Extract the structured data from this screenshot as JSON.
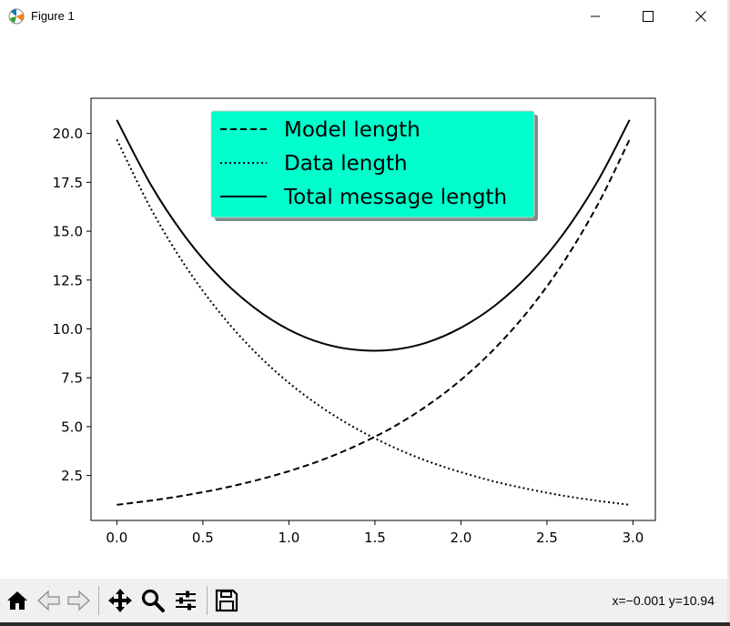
{
  "window": {
    "title": "Figure 1",
    "controls": {
      "minimize": "minimize",
      "maximize": "maximize",
      "close": "close"
    }
  },
  "toolbar": {
    "buttons": [
      "home-icon",
      "back-arrow-icon",
      "forward-arrow-icon",
      "pan-icon",
      "zoom-icon",
      "configure-subplots-icon",
      "save-icon"
    ],
    "coords": "x=−0.001 y=10.94"
  },
  "legend_style": {
    "background": "#00ffcc",
    "shadow": "#7f8c8a"
  },
  "chart_data": {
    "type": "line",
    "title": "",
    "xlabel": "",
    "ylabel": "",
    "xlim": [
      -0.15,
      3.13
    ],
    "ylim": [
      0.2,
      21.8
    ],
    "x_ticks": [
      0.0,
      0.5,
      1.0,
      1.5,
      2.0,
      2.5,
      3.0
    ],
    "x_tick_labels": [
      "0.0",
      "0.5",
      "1.0",
      "1.5",
      "2.0",
      "2.5",
      "3.0"
    ],
    "y_ticks": [
      2.5,
      5.0,
      7.5,
      10.0,
      12.5,
      15.0,
      17.5,
      20.0
    ],
    "y_tick_labels": [
      "2.5",
      "5.0",
      "7.5",
      "10.0",
      "12.5",
      "15.0",
      "17.5",
      "20.0"
    ],
    "grid": false,
    "legend_position": "upper-center",
    "x": [
      0.0,
      0.2,
      0.4,
      0.6,
      0.8,
      1.0,
      1.2,
      1.4,
      1.6,
      1.8,
      2.0,
      2.2,
      2.4,
      2.6,
      2.8,
      2.98
    ],
    "series": [
      {
        "name": "Model length",
        "style": "dashed",
        "values": [
          1.0,
          1.22,
          1.49,
          1.82,
          2.23,
          2.72,
          3.32,
          4.06,
          4.95,
          6.05,
          7.39,
          9.03,
          11.02,
          13.46,
          16.44,
          19.69
        ]
      },
      {
        "name": "Data length",
        "style": "dotted",
        "values": [
          19.69,
          16.12,
          13.2,
          10.81,
          8.85,
          7.24,
          5.93,
          4.86,
          3.98,
          3.25,
          2.67,
          2.18,
          1.79,
          1.46,
          1.2,
          1.0
        ]
      },
      {
        "name": "Total message length",
        "style": "solid",
        "values": [
          20.69,
          17.34,
          14.69,
          12.63,
          11.08,
          9.96,
          9.25,
          8.92,
          8.93,
          9.3,
          10.06,
          11.21,
          12.81,
          14.92,
          17.64,
          20.69
        ]
      }
    ]
  }
}
